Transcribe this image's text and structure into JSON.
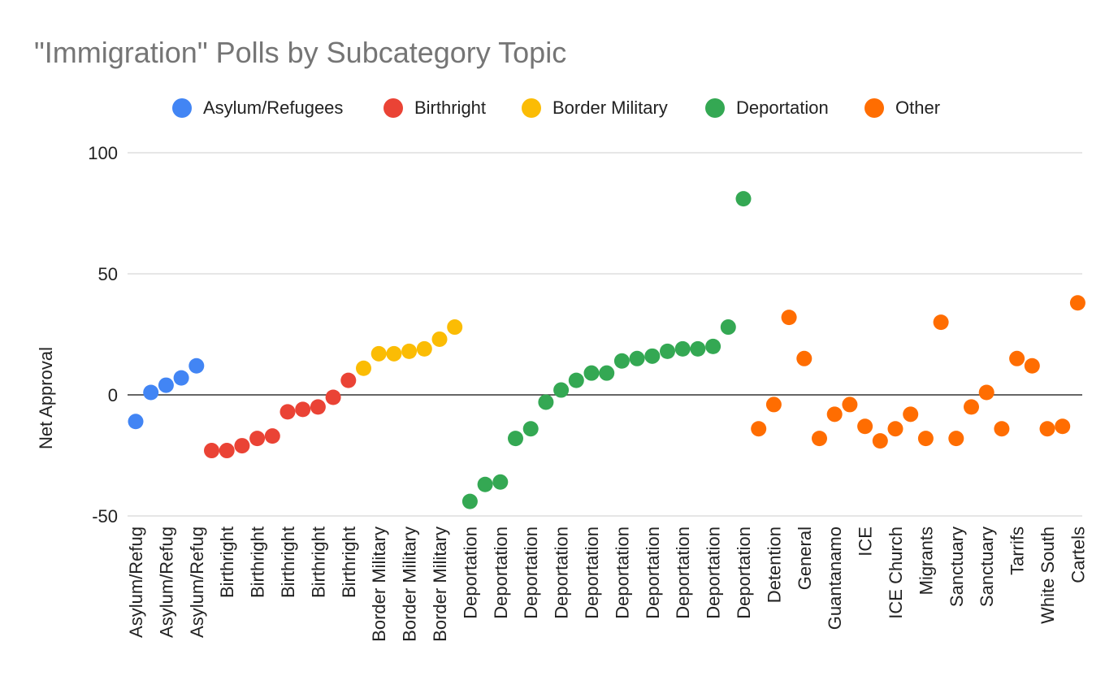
{
  "chart_data": {
    "type": "scatter",
    "title": "\"Immigration\" Polls by Subcategory Topic",
    "ylabel": "Net Approval",
    "xlabel": "",
    "ylim": [
      -50,
      100
    ],
    "yticks": [
      -50,
      0,
      50,
      100
    ],
    "grid": true,
    "legend_position": "top",
    "colors": {
      "Asylum/Refugees": "#4285f4",
      "Birthright": "#ea4335",
      "Border Military": "#fbbc04",
      "Deportation": "#34a853",
      "Other": "#ff6d01"
    },
    "series": [
      {
        "name": "Asylum/Refugees",
        "x": [
          1,
          2,
          3,
          4,
          5
        ],
        "values": [
          -11,
          1,
          4,
          7,
          12
        ]
      },
      {
        "name": "Birthright",
        "x": [
          6,
          7,
          8,
          9,
          10,
          11,
          12,
          13,
          14,
          15
        ],
        "values": [
          -23,
          -23,
          -21,
          -18,
          -17,
          -7,
          -6,
          -5,
          -1,
          6
        ]
      },
      {
        "name": "Border Military",
        "x": [
          16,
          17,
          18,
          19,
          20,
          21,
          22
        ],
        "values": [
          11,
          17,
          17,
          18,
          19,
          23,
          28
        ]
      },
      {
        "name": "Deportation",
        "x": [
          23,
          24,
          25,
          26,
          27,
          28,
          29,
          30,
          31,
          32,
          33,
          34,
          35,
          36,
          37,
          38,
          39,
          40,
          41,
          42
        ],
        "values": [
          -44,
          -37,
          -36,
          -18,
          -14,
          -3,
          2,
          6,
          9,
          9,
          14,
          15,
          16,
          18,
          19,
          19,
          20,
          28,
          81,
          null
        ]
      },
      {
        "name": "Other",
        "x": [
          42,
          43,
          44,
          45,
          46,
          47,
          48,
          49,
          50,
          51,
          52,
          53,
          54,
          55,
          56,
          57,
          58,
          59,
          60,
          61,
          62,
          63
        ],
        "values": [
          -14,
          -4,
          32,
          15,
          -18,
          -8,
          -4,
          -13,
          -19,
          -14,
          -8,
          -18,
          30,
          -18,
          -5,
          1,
          -14,
          15,
          12,
          -14,
          -13,
          38
        ]
      }
    ],
    "tick_labels": [
      {
        "x": 1,
        "label": "Asylum/Refug"
      },
      {
        "x": 3,
        "label": "Asylum/Refug"
      },
      {
        "x": 5,
        "label": "Asylum/Refug"
      },
      {
        "x": 7,
        "label": "Birthright"
      },
      {
        "x": 9,
        "label": "Birthright"
      },
      {
        "x": 11,
        "label": "Birthright"
      },
      {
        "x": 13,
        "label": "Birthright"
      },
      {
        "x": 15,
        "label": "Birthright"
      },
      {
        "x": 17,
        "label": "Border Military"
      },
      {
        "x": 19,
        "label": "Border Military"
      },
      {
        "x": 21,
        "label": "Border Military"
      },
      {
        "x": 23,
        "label": "Deportation"
      },
      {
        "x": 25,
        "label": "Deportation"
      },
      {
        "x": 27,
        "label": "Deportation"
      },
      {
        "x": 29,
        "label": "Deportation"
      },
      {
        "x": 31,
        "label": "Deportation"
      },
      {
        "x": 33,
        "label": "Deportation"
      },
      {
        "x": 35,
        "label": "Deportation"
      },
      {
        "x": 37,
        "label": "Deportation"
      },
      {
        "x": 39,
        "label": "Deportation"
      },
      {
        "x": 41,
        "label": "Deportation"
      },
      {
        "x": 43,
        "label": "Detention"
      },
      {
        "x": 45,
        "label": "General"
      },
      {
        "x": 47,
        "label": "Guantanamo"
      },
      {
        "x": 49,
        "label": "ICE"
      },
      {
        "x": 51,
        "label": "ICE Church"
      },
      {
        "x": 53,
        "label": "Migrants"
      },
      {
        "x": 55,
        "label": "Sanctuary"
      },
      {
        "x": 57,
        "label": "Sanctuary"
      },
      {
        "x": 59,
        "label": "Tarrifs"
      },
      {
        "x": 61,
        "label": "White South"
      },
      {
        "x": 63,
        "label": "Cartels"
      }
    ]
  }
}
